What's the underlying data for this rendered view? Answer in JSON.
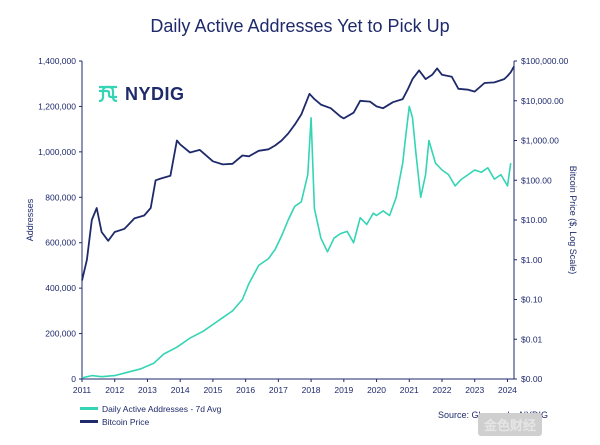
{
  "title": "Daily Active Addresses Yet to Pick Up",
  "logo": {
    "text": "NYDIG",
    "icon": "nydig-logo-icon"
  },
  "source": "Source: Glassnode, NYDIG",
  "watermark": "金色财经",
  "colors": {
    "addresses": "#34d4b4",
    "price": "#1f2a6b",
    "text": "#1f2a6b"
  },
  "chart_data": {
    "type": "line",
    "title": "Daily Active Addresses Yet to Pick Up",
    "x_ticks": [
      "2011",
      "2012",
      "2013",
      "2014",
      "2015",
      "2016",
      "2017",
      "2018",
      "2019",
      "2020",
      "2021",
      "2022",
      "2023",
      "2024"
    ],
    "xlim": [
      2011,
      2024.2
    ],
    "y_left": {
      "label": "Addresses",
      "ylim": [
        0,
        1400000
      ],
      "ticks": [
        0,
        200000,
        400000,
        600000,
        800000,
        1000000,
        1200000,
        1400000
      ],
      "tick_labels": [
        "0",
        "200,000",
        "400,000",
        "600,000",
        "800,000",
        "1,000,000",
        "1,200,000",
        "1,400,000"
      ]
    },
    "y_right": {
      "label": "Bitcoin Price ($, Log Scale)",
      "scale": "log",
      "ylim": [
        0.001,
        100000
      ],
      "ticks": [
        0.001,
        0.01,
        0.1,
        1,
        10,
        100,
        1000,
        10000,
        100000
      ],
      "tick_labels": [
        "$0.00",
        "$0.01",
        "$0.10",
        "$1.00",
        "$10.00",
        "$100.00",
        "$1,000.00",
        "$10,000.00",
        "$100,000.00"
      ]
    },
    "series": [
      {
        "name": "Daily Active Addresses - 7d Avg",
        "axis": "left",
        "x": [
          2011.0,
          2011.3,
          2011.6,
          2012.0,
          2012.4,
          2012.8,
          2013.2,
          2013.5,
          2013.9,
          2014.3,
          2014.7,
          2015.0,
          2015.3,
          2015.6,
          2015.9,
          2016.1,
          2016.4,
          2016.7,
          2016.9,
          2017.1,
          2017.3,
          2017.5,
          2017.7,
          2017.9,
          2018.0,
          2018.1,
          2018.3,
          2018.5,
          2018.7,
          2018.9,
          2019.1,
          2019.3,
          2019.5,
          2019.7,
          2019.9,
          2020.0,
          2020.2,
          2020.4,
          2020.6,
          2020.8,
          2020.9,
          2021.0,
          2021.1,
          2021.2,
          2021.35,
          2021.5,
          2021.6,
          2021.8,
          2022.0,
          2022.2,
          2022.4,
          2022.6,
          2022.8,
          2023.0,
          2023.2,
          2023.4,
          2023.6,
          2023.8,
          2024.0,
          2024.1
        ],
        "values": [
          5000,
          15000,
          10000,
          15000,
          30000,
          45000,
          70000,
          110000,
          140000,
          180000,
          210000,
          240000,
          270000,
          300000,
          350000,
          420000,
          500000,
          530000,
          570000,
          630000,
          700000,
          760000,
          780000,
          900000,
          1150000,
          750000,
          620000,
          560000,
          620000,
          640000,
          650000,
          600000,
          710000,
          680000,
          730000,
          720000,
          740000,
          720000,
          800000,
          950000,
          1080000,
          1200000,
          1150000,
          1000000,
          800000,
          900000,
          1050000,
          950000,
          920000,
          900000,
          850000,
          880000,
          900000,
          920000,
          910000,
          930000,
          880000,
          900000,
          850000,
          950000
        ]
      },
      {
        "name": "Bitcoin Price",
        "axis": "right",
        "x": [
          2011.0,
          2011.15,
          2011.3,
          2011.45,
          2011.6,
          2011.8,
          2012.0,
          2012.3,
          2012.6,
          2012.9,
          2013.1,
          2013.25,
          2013.4,
          2013.7,
          2013.9,
          2014.0,
          2014.3,
          2014.6,
          2015.0,
          2015.3,
          2015.6,
          2015.9,
          2016.1,
          2016.4,
          2016.7,
          2016.9,
          2017.1,
          2017.3,
          2017.5,
          2017.7,
          2017.95,
          2018.1,
          2018.3,
          2018.6,
          2018.9,
          2019.0,
          2019.3,
          2019.5,
          2019.8,
          2020.0,
          2020.2,
          2020.5,
          2020.8,
          2020.95,
          2021.1,
          2021.3,
          2021.5,
          2021.7,
          2021.85,
          2022.0,
          2022.3,
          2022.5,
          2022.8,
          2023.0,
          2023.3,
          2023.6,
          2023.9,
          2024.0,
          2024.1,
          2024.2
        ],
        "values": [
          0.3,
          1,
          10,
          20,
          5,
          3,
          5,
          6,
          11,
          13,
          20,
          100,
          110,
          130,
          1000,
          800,
          500,
          580,
          300,
          250,
          260,
          420,
          400,
          550,
          600,
          750,
          1000,
          1500,
          2500,
          4500,
          15000,
          11000,
          8000,
          6500,
          4000,
          3600,
          5000,
          10000,
          9500,
          7200,
          6500,
          9200,
          11000,
          19000,
          35000,
          58000,
          35000,
          45000,
          65000,
          45000,
          40000,
          20000,
          19000,
          17000,
          28000,
          29000,
          35000,
          42000,
          52000,
          73000
        ]
      }
    ],
    "legend_position": "bottom-left",
    "grid": false
  }
}
